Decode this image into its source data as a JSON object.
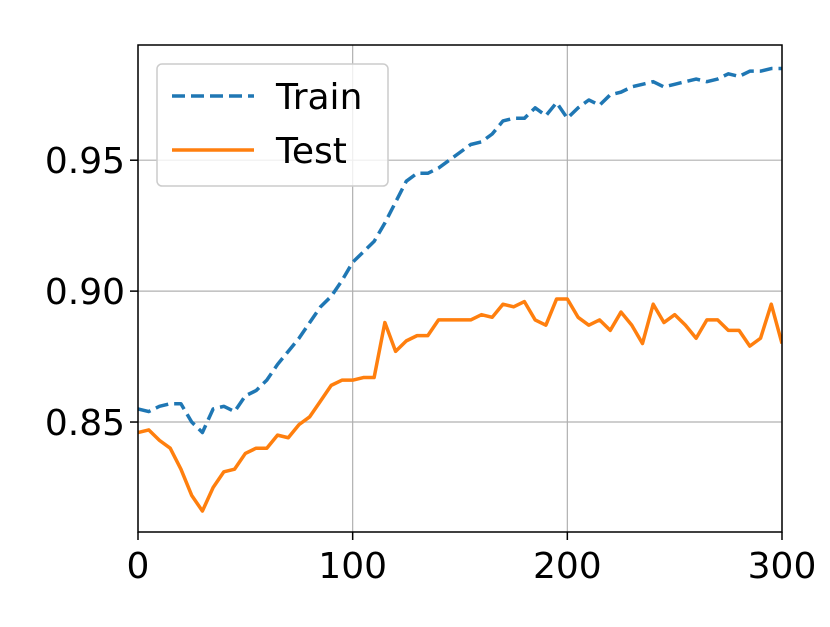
{
  "chart_data": {
    "type": "line",
    "title": "",
    "xlabel": "",
    "ylabel": "",
    "xlim": [
      0,
      300
    ],
    "ylim": [
      0.808,
      0.994
    ],
    "x_ticks": [
      0,
      100,
      200,
      300
    ],
    "y_ticks": [
      0.85,
      0.9,
      0.95
    ],
    "x_tick_labels": [
      "0",
      "100",
      "200",
      "300"
    ],
    "y_tick_labels": [
      "0.85",
      "0.90",
      "0.95"
    ],
    "grid": true,
    "legend_position": "top-left",
    "series": [
      {
        "name": "Train",
        "color": "#1f77b4",
        "style": "dashed",
        "x": [
          0,
          5,
          10,
          15,
          20,
          25,
          30,
          35,
          40,
          45,
          50,
          55,
          60,
          65,
          70,
          75,
          80,
          85,
          90,
          95,
          100,
          105,
          110,
          115,
          120,
          125,
          130,
          135,
          140,
          145,
          150,
          155,
          160,
          165,
          170,
          175,
          180,
          185,
          190,
          195,
          200,
          205,
          210,
          215,
          220,
          225,
          230,
          235,
          240,
          245,
          250,
          255,
          260,
          265,
          270,
          275,
          280,
          285,
          290,
          295,
          300
        ],
        "y": [
          0.855,
          0.854,
          0.856,
          0.857,
          0.857,
          0.85,
          0.846,
          0.855,
          0.856,
          0.854,
          0.86,
          0.862,
          0.866,
          0.872,
          0.877,
          0.882,
          0.888,
          0.894,
          0.898,
          0.904,
          0.911,
          0.915,
          0.919,
          0.926,
          0.934,
          0.942,
          0.945,
          0.945,
          0.947,
          0.95,
          0.953,
          0.956,
          0.957,
          0.96,
          0.965,
          0.966,
          0.966,
          0.97,
          0.967,
          0.972,
          0.966,
          0.97,
          0.973,
          0.971,
          0.975,
          0.976,
          0.978,
          0.979,
          0.98,
          0.978,
          0.979,
          0.98,
          0.981,
          0.98,
          0.981,
          0.983,
          0.982,
          0.984,
          0.984,
          0.985,
          0.985
        ]
      },
      {
        "name": "Test",
        "color": "#ff7f0e",
        "style": "solid",
        "x": [
          0,
          5,
          10,
          15,
          20,
          25,
          30,
          35,
          40,
          45,
          50,
          55,
          60,
          65,
          70,
          75,
          80,
          85,
          90,
          95,
          100,
          105,
          110,
          115,
          120,
          125,
          130,
          135,
          140,
          145,
          150,
          155,
          160,
          165,
          170,
          175,
          180,
          185,
          190,
          195,
          200,
          205,
          210,
          215,
          220,
          225,
          230,
          235,
          240,
          245,
          250,
          255,
          260,
          265,
          270,
          275,
          280,
          285,
          290,
          295,
          300
        ],
        "y": [
          0.846,
          0.847,
          0.843,
          0.84,
          0.832,
          0.822,
          0.816,
          0.825,
          0.831,
          0.832,
          0.838,
          0.84,
          0.84,
          0.845,
          0.844,
          0.849,
          0.852,
          0.858,
          0.864,
          0.866,
          0.866,
          0.867,
          0.867,
          0.888,
          0.877,
          0.881,
          0.883,
          0.883,
          0.889,
          0.889,
          0.889,
          0.889,
          0.891,
          0.89,
          0.895,
          0.894,
          0.896,
          0.889,
          0.887,
          0.897,
          0.897,
          0.89,
          0.887,
          0.889,
          0.885,
          0.892,
          0.887,
          0.88,
          0.895,
          0.888,
          0.891,
          0.887,
          0.882,
          0.889,
          0.889,
          0.885,
          0.885,
          0.879,
          0.882,
          0.895,
          0.88
        ]
      }
    ]
  }
}
